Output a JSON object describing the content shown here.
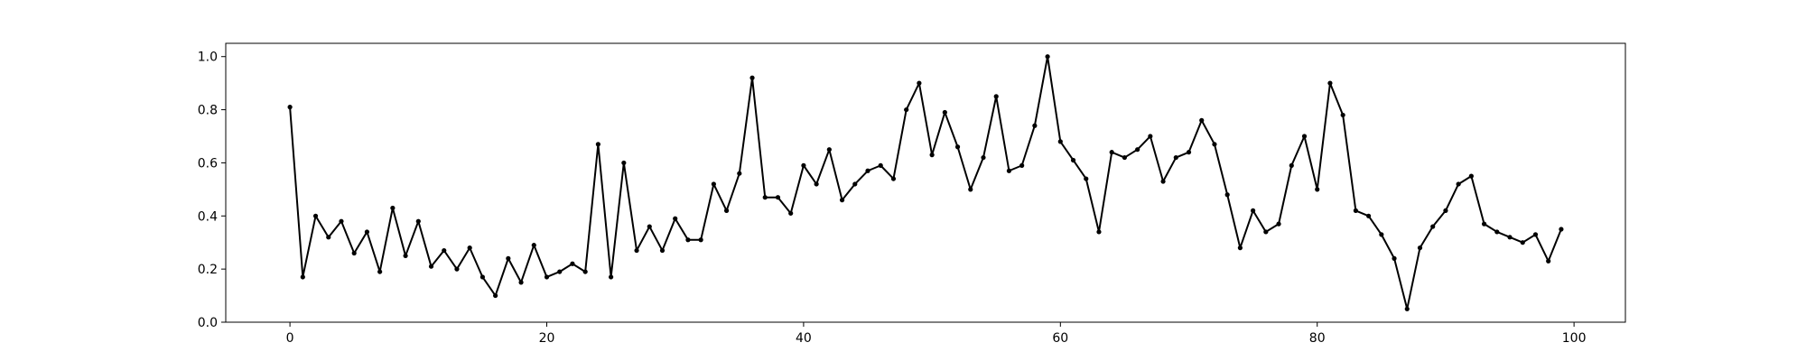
{
  "chart_data": {
    "type": "line",
    "title": "",
    "xlabel": "",
    "ylabel": "",
    "xlim": [
      -5,
      104
    ],
    "ylim": [
      0.0,
      1.05
    ],
    "grid": false,
    "legend": "none",
    "x_ticks": [
      0,
      20,
      40,
      60,
      80,
      100
    ],
    "x_tick_labels": [
      "0",
      "20",
      "40",
      "60",
      "80",
      "100"
    ],
    "y_ticks": [
      0.0,
      0.2,
      0.4,
      0.6,
      0.8,
      1.0
    ],
    "y_tick_labels": [
      "0.0",
      "0.2",
      "0.4",
      "0.6",
      "0.8",
      "1.0"
    ],
    "line_color": "#000000",
    "marker": "circle",
    "series": [
      {
        "x": [
          0,
          1,
          2,
          3,
          4,
          5,
          6,
          7,
          8,
          9,
          10,
          11,
          12,
          13,
          14,
          15,
          16,
          17,
          18,
          19,
          20,
          21,
          22,
          23,
          24,
          25,
          26,
          27,
          28,
          29,
          30,
          31,
          32,
          33,
          34,
          35,
          36,
          37,
          38,
          39,
          40,
          41,
          42,
          43,
          44,
          45,
          46,
          47,
          48,
          49,
          50,
          51,
          52,
          53,
          54,
          55,
          56,
          57,
          58,
          59,
          60,
          61,
          62,
          63,
          64,
          65,
          66,
          67,
          68,
          69,
          70,
          71,
          72,
          73,
          74,
          75,
          76,
          77,
          78,
          79,
          80,
          81,
          82,
          83,
          84,
          85,
          86,
          87,
          88,
          89,
          90,
          91,
          92,
          93,
          94,
          95,
          96,
          97,
          98,
          99
        ],
        "values": [
          0.81,
          0.17,
          0.4,
          0.32,
          0.38,
          0.26,
          0.34,
          0.19,
          0.43,
          0.25,
          0.38,
          0.21,
          0.27,
          0.2,
          0.28,
          0.17,
          0.1,
          0.24,
          0.15,
          0.29,
          0.17,
          0.19,
          0.22,
          0.19,
          0.67,
          0.17,
          0.6,
          0.27,
          0.36,
          0.27,
          0.39,
          0.31,
          0.31,
          0.52,
          0.42,
          0.56,
          0.92,
          0.47,
          0.47,
          0.41,
          0.59,
          0.52,
          0.65,
          0.46,
          0.52,
          0.57,
          0.59,
          0.54,
          0.8,
          0.9,
          0.63,
          0.79,
          0.66,
          0.5,
          0.62,
          0.85,
          0.57,
          0.59,
          0.74,
          1.0,
          0.68,
          0.61,
          0.54,
          0.34,
          0.64,
          0.62,
          0.65,
          0.7,
          0.53,
          0.62,
          0.64,
          0.76,
          0.67,
          0.48,
          0.28,
          0.42,
          0.34,
          0.37,
          0.59,
          0.7,
          0.5,
          0.9,
          0.78,
          0.42,
          0.4,
          0.33,
          0.24,
          0.05,
          0.28,
          0.36,
          0.42,
          0.52,
          0.55,
          0.37,
          0.34,
          0.32,
          0.3,
          0.33,
          0.23,
          0.35
        ]
      }
    ]
  }
}
